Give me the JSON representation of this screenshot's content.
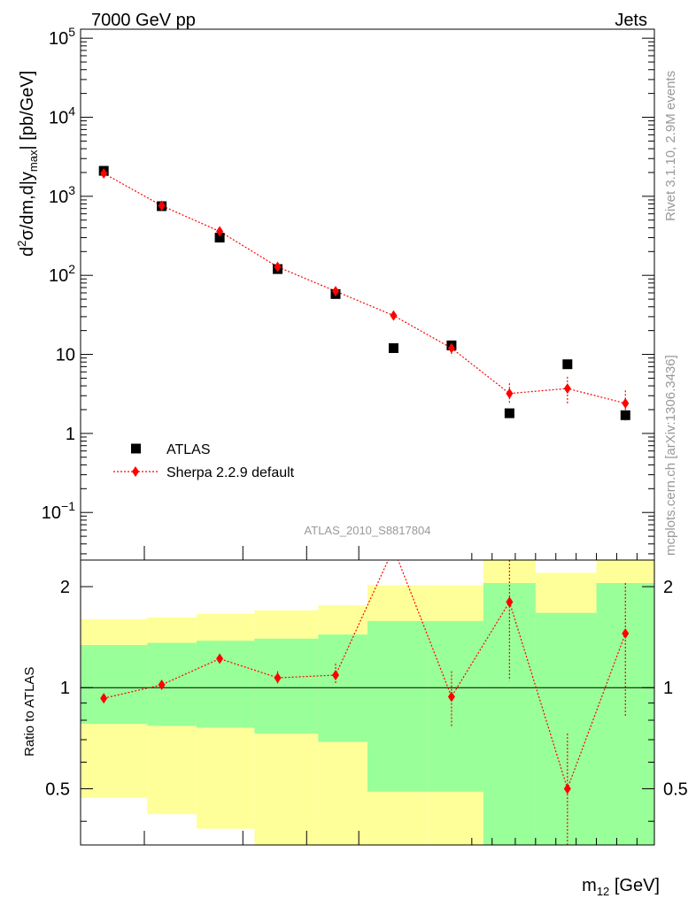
{
  "header": {
    "left": "7000 GeV pp",
    "right": "Jets"
  },
  "side_texts": {
    "rivet": "Rivet 3.1.10,  2.9M events",
    "mcplots": "mcplots.cern.ch [arXiv:1306.3436]"
  },
  "analysis_label": "ATLAS_2010_S8817804",
  "colors": {
    "data": "#000000",
    "mc": "#ff0000",
    "band_inner": "#99ff99",
    "band_outer": "#ffff99"
  },
  "chart_data": [
    {
      "type": "scatter",
      "panel": "main",
      "ylabel": {
        "base": "d",
        "sup": "2",
        "mid": "σ/dm,d|y",
        "sub": "max",
        "tail": "| [pb/GeV]"
      },
      "yscale": "log",
      "ylim": [
        0.025,
        130000
      ],
      "yticks": [
        {
          "value": 100000,
          "base": "10",
          "exp": "5"
        },
        {
          "value": 10000,
          "base": "10",
          "exp": "4"
        },
        {
          "value": 1000,
          "base": "10",
          "exp": "3"
        },
        {
          "value": 100,
          "base": "10",
          "exp": "2"
        },
        {
          "value": 10,
          "base": "10",
          "exp": ""
        },
        {
          "value": 1,
          "base": "1",
          "exp": ""
        },
        {
          "value": 0.1,
          "base": "10",
          "exp": "−1"
        }
      ],
      "legend": {
        "placement": "lower-left",
        "entries": [
          {
            "label": "ATLAS",
            "marker": "square"
          },
          {
            "label": "Sherpa 2.2.9 default",
            "marker": "diamond-dotted-line"
          }
        ]
      },
      "series": [
        {
          "name": "ATLAS",
          "points": [
            {
              "x": 1,
              "y": 2100
            },
            {
              "x": 2,
              "y": 750
            },
            {
              "x": 3,
              "y": 300
            },
            {
              "x": 4,
              "y": 120
            },
            {
              "x": 5,
              "y": 58
            },
            {
              "x": 6,
              "y": 12
            },
            {
              "x": 7,
              "y": 13
            },
            {
              "x": 8,
              "y": 1.8
            },
            {
              "x": 9,
              "y": 7.5
            },
            {
              "x": 10,
              "y": 1.7
            }
          ]
        },
        {
          "name": "Sherpa 2.2.9 default",
          "points": [
            {
              "x": 1,
              "y": 1950,
              "lo": 1750,
              "hi": 2150
            },
            {
              "x": 2,
              "y": 760,
              "lo": 700,
              "hi": 820
            },
            {
              "x": 3,
              "y": 360,
              "lo": 330,
              "hi": 395
            },
            {
              "x": 4,
              "y": 128,
              "lo": 115,
              "hi": 142
            },
            {
              "x": 5,
              "y": 63,
              "lo": 56,
              "hi": 70
            },
            {
              "x": 6,
              "y": 31,
              "lo": 28,
              "hi": 35
            },
            {
              "x": 7,
              "y": 12,
              "lo": 9.5,
              "hi": 14.5
            },
            {
              "x": 8,
              "y": 3.2,
              "lo": 2.4,
              "hi": 4.3
            },
            {
              "x": 9,
              "y": 3.7,
              "lo": 2.4,
              "hi": 5.2
            },
            {
              "x": 10,
              "y": 2.4,
              "lo": 1.4,
              "hi": 3.5
            }
          ]
        }
      ]
    },
    {
      "type": "line",
      "panel": "ratio",
      "ylabel": "Ratio to ATLAS",
      "yscale": "log",
      "ylim": [
        0.34,
        2.4
      ],
      "yticks": [
        {
          "value": 2,
          "label": "2"
        },
        {
          "value": 1,
          "label": "1"
        },
        {
          "value": 0.5,
          "label": "0.5"
        }
      ],
      "reference_line": 1,
      "x_edges": [
        0.6,
        1.75,
        2.6,
        3.6,
        4.7,
        5.55,
        6.6,
        7.55,
        8.45,
        9.5,
        10.5
      ],
      "bands": {
        "inner": [
          [
            0.78,
            1.34
          ],
          [
            0.77,
            1.36
          ],
          [
            0.76,
            1.38
          ],
          [
            0.73,
            1.4
          ],
          [
            0.69,
            1.44
          ],
          [
            0.49,
            1.58
          ],
          [
            0.49,
            1.58
          ],
          [
            0.33,
            2.05
          ],
          [
            0.33,
            1.67
          ],
          [
            0.33,
            2.05
          ]
        ],
        "outer": [
          [
            0.47,
            1.6
          ],
          [
            0.42,
            1.62
          ],
          [
            0.38,
            1.66
          ],
          [
            0.34,
            1.7
          ],
          [
            0.33,
            1.76
          ],
          [
            0.33,
            2.02
          ],
          [
            0.33,
            2.02
          ],
          [
            0.33,
            2.4
          ],
          [
            0.37,
            2.2
          ],
          [
            0.33,
            2.4
          ]
        ]
      },
      "series": [
        {
          "name": "Sherpa 2.2.9 default",
          "points": [
            {
              "x": 1,
              "y": 0.93,
              "lo": 0.91,
              "hi": 0.95
            },
            {
              "x": 2,
              "y": 1.02,
              "lo": 1.0,
              "hi": 1.05
            },
            {
              "x": 3,
              "y": 1.22,
              "lo": 1.18,
              "hi": 1.26
            },
            {
              "x": 4,
              "y": 1.07,
              "lo": 1.03,
              "hi": 1.12
            },
            {
              "x": 5,
              "y": 1.09,
              "lo": 1.03,
              "hi": 1.18
            },
            {
              "x": 6,
              "y": 2.6,
              "lo": 2.4,
              "hi": 2.8
            },
            {
              "x": 7,
              "y": 0.94,
              "lo": 0.76,
              "hi": 1.12
            },
            {
              "x": 8,
              "y": 1.8,
              "lo": 1.05,
              "hi": 2.6
            },
            {
              "x": 9,
              "y": 0.5,
              "lo": 0.33,
              "hi": 0.73
            },
            {
              "x": 10,
              "y": 1.45,
              "lo": 0.82,
              "hi": 2.05
            }
          ]
        }
      ]
    }
  ],
  "xaxis": {
    "label_main": "m",
    "label_sub": "12",
    "label_tail": " [GeV]",
    "xlim": [
      0.6,
      10.5
    ]
  }
}
